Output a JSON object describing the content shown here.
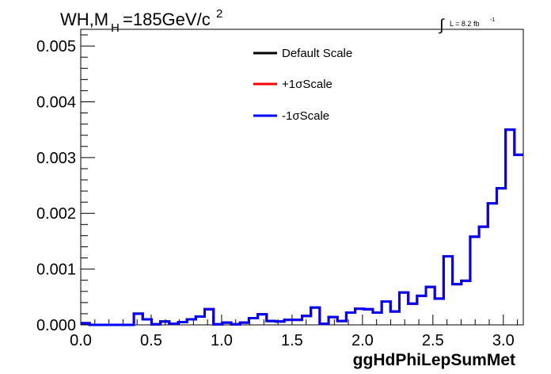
{
  "chart_data": {
    "type": "line",
    "step": true,
    "title": {
      "main": "WH,M",
      "sub": "H",
      "rest": "=185GeV/c",
      "sup": "2"
    },
    "lumi": {
      "integral": "∫",
      "text": "L = 8.2 fb",
      "sup": "-1"
    },
    "xlabel": "ggHdPhiLepSumMet",
    "ylabel": "",
    "xlim": [
      0,
      3.1416
    ],
    "ylim": [
      0,
      0.0053
    ],
    "x_ticks": [
      "0.0",
      "0.5",
      "1.0",
      "1.5",
      "2.0",
      "2.5",
      "3.0"
    ],
    "y_ticks": [
      "0.000",
      "0.001",
      "0.002",
      "0.003",
      "0.004",
      "0.005"
    ],
    "grid": false,
    "legend_position": "top-right",
    "bin_edges": [
      0,
      0.0628,
      0.1257,
      0.1885,
      0.2513,
      0.3142,
      0.377,
      0.4398,
      0.5027,
      0.5655,
      0.6283,
      0.6912,
      0.754,
      0.8168,
      0.8796,
      0.9425,
      1.0053,
      1.0681,
      1.131,
      1.1938,
      1.2566,
      1.3195,
      1.3823,
      1.4451,
      1.508,
      1.5708,
      1.6336,
      1.6965,
      1.7593,
      1.8221,
      1.885,
      1.9478,
      2.0106,
      2.0735,
      2.1363,
      2.1991,
      2.2619,
      2.3248,
      2.3876,
      2.4504,
      2.5133,
      2.5761,
      2.6389,
      2.7018,
      2.7646,
      2.8274,
      2.8903,
      2.9531,
      3.0159,
      3.0788,
      3.1416
    ],
    "series": [
      {
        "name": "Default Scale",
        "color": "#000000",
        "values": [
          3e-05,
          0.0,
          0.0,
          0.0,
          0.0,
          0.0,
          0.0002,
          0.0001,
          1e-05,
          6e-05,
          2e-05,
          5e-05,
          0.0001,
          0.00015,
          0.00028,
          1e-05,
          4e-05,
          1e-05,
          4e-05,
          0.00012,
          0.00019,
          7e-05,
          6e-05,
          9e-05,
          9e-05,
          0.00016,
          0.00031,
          2e-05,
          0.00014,
          7e-05,
          0.00022,
          0.00029,
          0.00028,
          0.00022,
          0.00042,
          0.00024,
          0.00058,
          0.00038,
          0.00052,
          0.00068,
          0.00047,
          0.00123,
          0.00073,
          0.00079,
          0.00158,
          0.00176,
          0.00218,
          0.00245,
          0.0035,
          0.00305
        ]
      },
      {
        "name": "+1σScale",
        "color": "#ff0000",
        "values": [
          3e-05,
          0.0,
          0.0,
          0.0,
          0.0,
          0.0,
          0.0002,
          0.0001,
          1e-05,
          6e-05,
          2e-05,
          5e-05,
          0.0001,
          0.00015,
          0.00028,
          1e-05,
          4e-05,
          1e-05,
          4e-05,
          0.00012,
          0.00019,
          7e-05,
          6e-05,
          9e-05,
          9e-05,
          0.00016,
          0.00031,
          2e-05,
          0.00014,
          7e-05,
          0.00022,
          0.00029,
          0.00028,
          0.00022,
          0.00042,
          0.00024,
          0.00058,
          0.00038,
          0.00052,
          0.00068,
          0.00047,
          0.00123,
          0.00073,
          0.00079,
          0.00158,
          0.00176,
          0.00218,
          0.00245,
          0.0035,
          0.00305
        ]
      },
      {
        "name": "-1σScale",
        "color": "#0000ff",
        "values": [
          3e-05,
          0.0,
          0.0,
          0.0,
          0.0,
          0.0,
          0.0002,
          0.0001,
          1e-05,
          6e-05,
          2e-05,
          5e-05,
          0.0001,
          0.00015,
          0.00028,
          1e-05,
          4e-05,
          1e-05,
          4e-05,
          0.00012,
          0.00019,
          7e-05,
          6e-05,
          9e-05,
          9e-05,
          0.00016,
          0.00031,
          2e-05,
          0.00014,
          7e-05,
          0.00022,
          0.00029,
          0.00028,
          0.00022,
          0.00042,
          0.00024,
          0.00058,
          0.00038,
          0.00052,
          0.00068,
          0.00047,
          0.00123,
          0.00073,
          0.00079,
          0.00158,
          0.00176,
          0.00218,
          0.00245,
          0.0035,
          0.00305
        ]
      }
    ]
  }
}
